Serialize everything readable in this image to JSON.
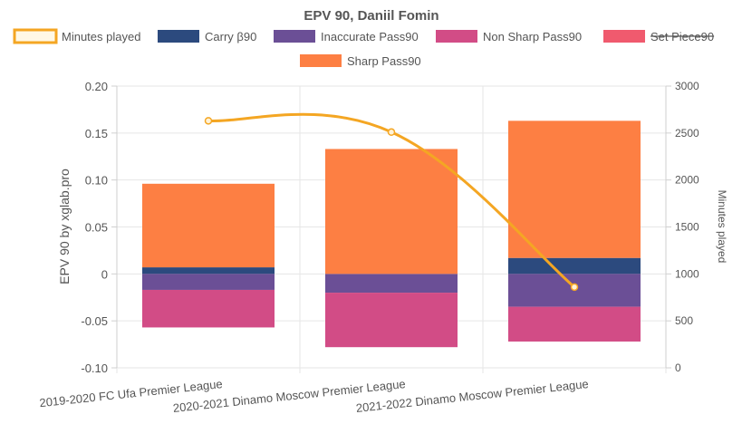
{
  "chart_data": {
    "type": "bar",
    "title": "EPV 90, Daniil Fomin",
    "ylabel": "EPV 90 by xglab.pro",
    "y2label": "Minutes played",
    "ylim": [
      -0.1,
      0.2
    ],
    "y2lim": [
      0,
      3000
    ],
    "yticks": [
      "0.20",
      "0.15",
      "0.10",
      "0.05",
      "0",
      "-0.05",
      "-0.10"
    ],
    "y2ticks": [
      "3000",
      "2500",
      "2000",
      "1500",
      "1000",
      "500",
      "0"
    ],
    "categories": [
      "2019-2020 FC Ufa Premier League",
      "2020-2021 Dinamo Moscow Premier League",
      "2021-2022 Dinamo Moscow Premier League"
    ],
    "stacked": true,
    "grid": true,
    "legend_position": "top",
    "series": [
      {
        "name": "Carry β90",
        "type": "bar",
        "color": "#2c4a7e",
        "values": [
          0.007,
          0.0,
          0.017
        ]
      },
      {
        "name": "Inaccurate Pass90",
        "type": "bar",
        "color": "#6b4f96",
        "values": [
          -0.017,
          -0.02,
          -0.035
        ]
      },
      {
        "name": "Non Sharp Pass90",
        "type": "bar",
        "color": "#d24c86",
        "values": [
          -0.04,
          -0.058,
          -0.037
        ]
      },
      {
        "name": "Set Piece90",
        "type": "bar",
        "color": "#f05a6e",
        "hidden": true,
        "values": [
          0,
          0,
          0
        ]
      },
      {
        "name": "Sharp Pass90",
        "type": "bar",
        "color": "#fd7f43",
        "values": [
          0.089,
          0.133,
          0.146
        ]
      },
      {
        "name": "Minutes played",
        "type": "line",
        "axis": "right",
        "color": "#f4a623",
        "values": [
          2630,
          2510,
          860
        ]
      }
    ]
  }
}
